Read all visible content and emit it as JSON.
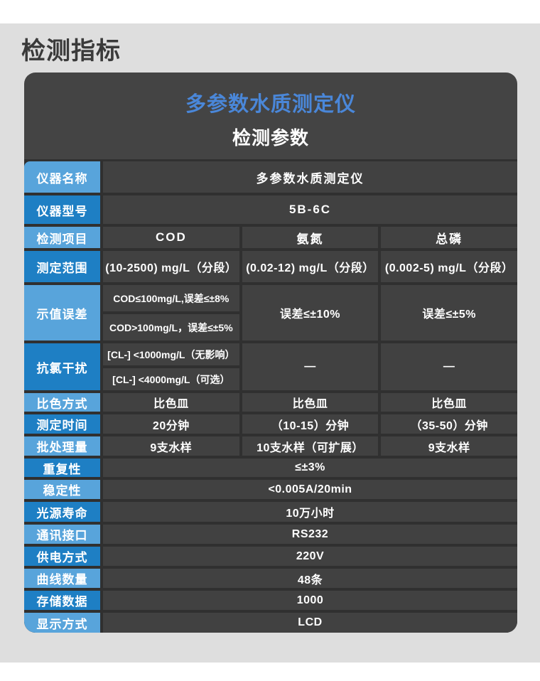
{
  "page": {
    "heading": "检测指标"
  },
  "card": {
    "title": "多参数水质测定仪",
    "subtitle": "检测参数"
  },
  "colors": {
    "page_gray": "#dedede",
    "heading_text": "#3a3a3a",
    "card_bg": "#444444",
    "grid_line": "#303030",
    "cell_bg": "#414141",
    "label_light_blue": "#58a4db",
    "label_dark_blue": "#1e7fc4",
    "title_blue": "#4a87d9",
    "text_white": "#ffffff"
  },
  "table": {
    "rows": [
      {
        "key": "instrument-name",
        "label": "仪器名称",
        "shade": "light",
        "header": true,
        "cells": [
          {
            "text": "多参数水质测定仪",
            "span": 3
          }
        ]
      },
      {
        "key": "model",
        "label": "仪器型号",
        "shade": "dark",
        "header": true,
        "cells": [
          {
            "text": "5B-6C",
            "span": 3
          }
        ]
      },
      {
        "key": "detection-items",
        "label": "检测项目",
        "shade": "light",
        "header": true,
        "cells": [
          {
            "text": "COD"
          },
          {
            "text": "氨氮"
          },
          {
            "text": "总磷"
          }
        ]
      },
      {
        "key": "measuring-range",
        "label": "测定范围",
        "shade": "dark",
        "cells": [
          {
            "text": "(10-2500) mg/L（分段）"
          },
          {
            "text": "(0.02-12) mg/L（分段）"
          },
          {
            "text": "(0.002-5) mg/L（分段）"
          }
        ]
      },
      {
        "key": "indication-error",
        "label": "示值误差",
        "shade": "light",
        "cells": [
          {
            "lines": [
              "COD≤100mg/L,误差≤±8%",
              "COD>100mg/L，误差≤±5%"
            ]
          },
          {
            "text": "误差≤±10%"
          },
          {
            "text": "误差≤±5%"
          }
        ]
      },
      {
        "key": "chloride-resistance",
        "label": "抗氯干扰",
        "shade": "dark",
        "cells": [
          {
            "lines": [
              "[CL-] <1000mg/L（无影响）",
              "[CL-] <4000mg/L（可选）"
            ]
          },
          {
            "text": "—"
          },
          {
            "text": "—"
          }
        ]
      },
      {
        "key": "colorimetric-method",
        "label": "比色方式",
        "shade": "light",
        "cells": [
          {
            "text": "比色皿"
          },
          {
            "text": "比色皿"
          },
          {
            "text": "比色皿"
          }
        ]
      },
      {
        "key": "measuring-time",
        "label": "测定时间",
        "shade": "dark",
        "cells": [
          {
            "text": "20分钟"
          },
          {
            "text": "（10-15）分钟"
          },
          {
            "text": "（35-50）分钟"
          }
        ]
      },
      {
        "key": "batch-capacity",
        "label": "批处理量",
        "shade": "light",
        "cells": [
          {
            "text": "9支水样"
          },
          {
            "text": "10支水样（可扩展）"
          },
          {
            "text": "9支水样"
          }
        ]
      },
      {
        "key": "repeatability",
        "label": "重复性",
        "shade": "dark",
        "cells": [
          {
            "text": "≤±3%",
            "span": 3
          }
        ]
      },
      {
        "key": "stability",
        "label": "稳定性",
        "shade": "light",
        "cells": [
          {
            "text": "<0.005A/20min",
            "span": 3
          }
        ]
      },
      {
        "key": "lamp-life",
        "label": "光源寿命",
        "shade": "dark",
        "cells": [
          {
            "text": "10万小时",
            "span": 3
          }
        ]
      },
      {
        "key": "comm-interface",
        "label": "通讯接口",
        "shade": "light",
        "cells": [
          {
            "text": "RS232",
            "span": 3
          }
        ]
      },
      {
        "key": "power-supply",
        "label": "供电方式",
        "shade": "dark",
        "cells": [
          {
            "text": "220V",
            "span": 3
          }
        ]
      },
      {
        "key": "curve-count",
        "label": "曲线数量",
        "shade": "light",
        "cells": [
          {
            "text": "48条",
            "span": 3
          }
        ]
      },
      {
        "key": "data-storage",
        "label": "存储数据",
        "shade": "dark",
        "cells": [
          {
            "text": "1000",
            "span": 3
          }
        ]
      },
      {
        "key": "display-type",
        "label": "显示方式",
        "shade": "light",
        "cells": [
          {
            "text": "LCD",
            "span": 3
          }
        ]
      }
    ]
  }
}
